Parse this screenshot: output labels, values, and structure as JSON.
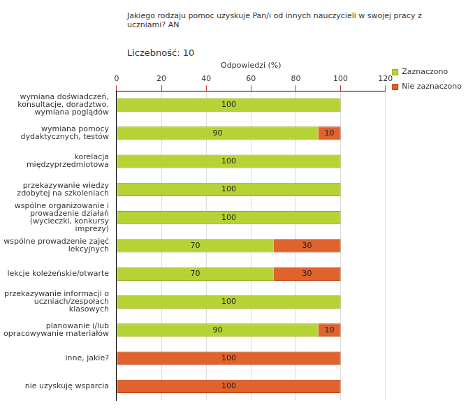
{
  "chart_data": {
    "type": "bar",
    "orientation": "horizontal",
    "stacked": true,
    "title": "Jakiego rodzaju pomoc uzyskuje Pan/i od innych nauczycieli w swojej pracy z uczniami? AN",
    "subtitle": "Liczebność: 10",
    "x_label": "Odpowiedzi (%)",
    "categories": [
      "wymiana doświadczeń, konsultacje, doradztwo, wymiana poglądów",
      "wymiana pomocy dydaktycznych, testów",
      "korelacja międzyprzedmiotowa",
      "przekazywanie wiedzy zdobytej na szkoleniach",
      "wspólne organizowanie i prowadzenie działań (wycieczki, konkursy imprezy)",
      "wspólne prowadzenie zajęć lekcyjnych",
      "lekcje koleżeńskie/otwarte",
      "przekazywanie informacji o uczniach/zespołach klasowych",
      "planowanie i/lub opracowywanie materiałów",
      "inne, jakie?",
      "nie uzyskuję wsparcia"
    ],
    "series": [
      {
        "name": "Zaznaczono",
        "color": "#b5d334",
        "values": [
          100,
          90,
          100,
          100,
          100,
          70,
          70,
          100,
          90,
          0,
          0
        ]
      },
      {
        "name": "Nie zaznaczono",
        "color": "#e0622c",
        "values": [
          0,
          10,
          0,
          0,
          0,
          30,
          30,
          0,
          10,
          100,
          100
        ]
      }
    ],
    "xlim": [
      0,
      120
    ],
    "xticks": [
      0,
      20,
      40,
      60,
      80,
      100,
      120
    ],
    "grid": true,
    "legend": "right",
    "data_labels": true
  }
}
